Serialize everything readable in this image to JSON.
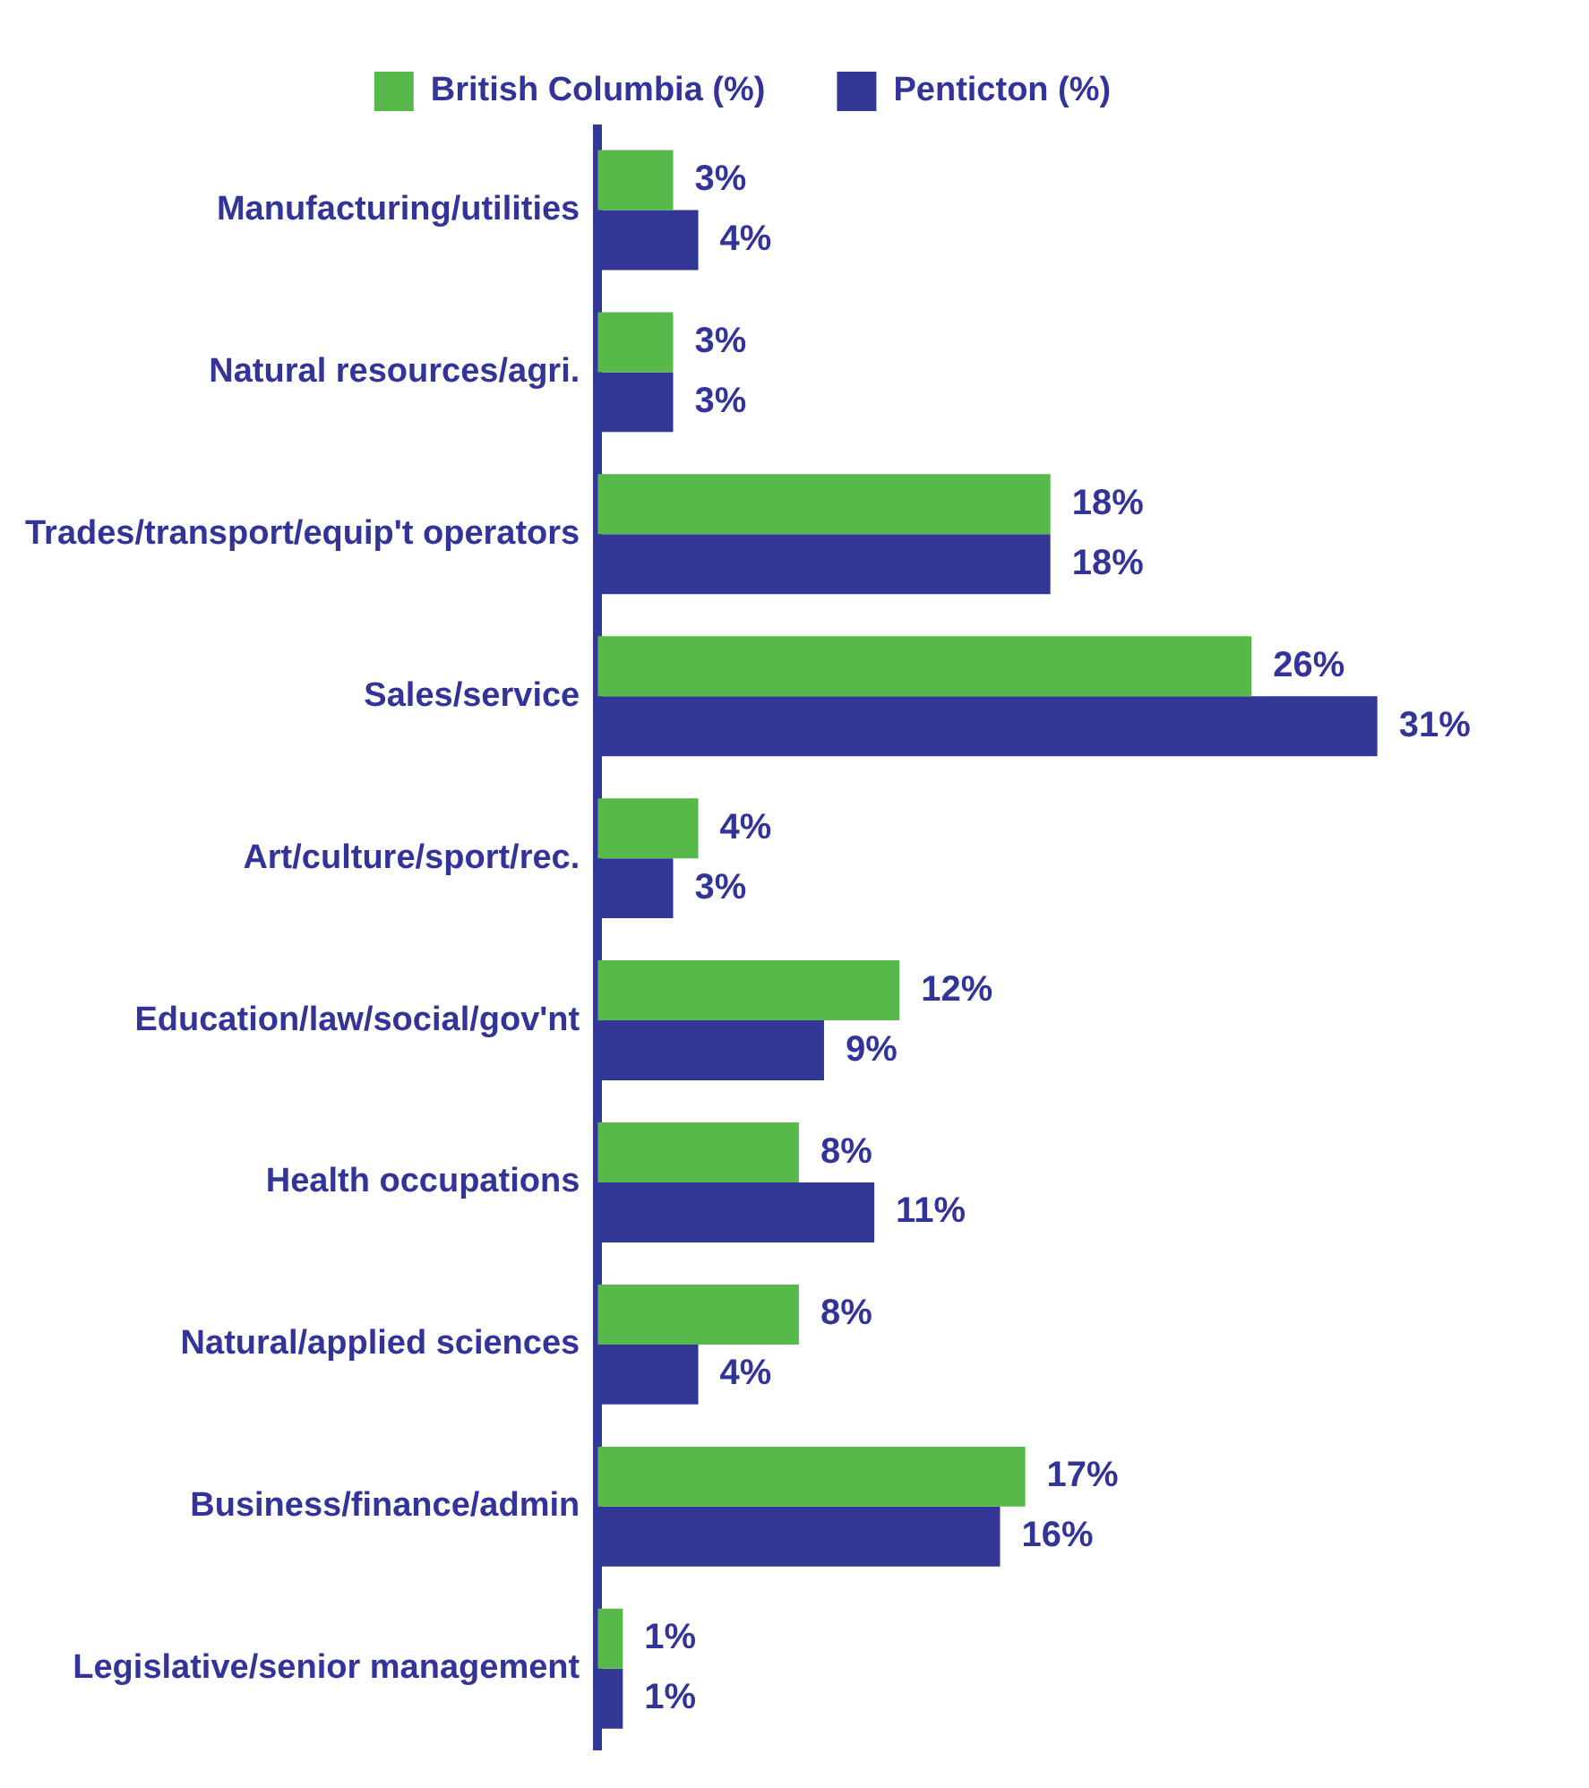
{
  "chart_data": {
    "type": "bar",
    "orientation": "horizontal",
    "legend": "top",
    "categories": [
      "Manufacturing/utilities",
      "Natural resources/agri.",
      "Trades/transport/equip't operators",
      "Sales/service",
      "Art/culture/sport/rec.",
      "Education/law/social/gov'nt",
      "Health occupations",
      "Natural/applied sciences",
      "Business/finance/admin",
      "Legislative/senior management"
    ],
    "series": [
      {
        "name": "British Columbia (%)",
        "color": "#56b949",
        "values": [
          3,
          3,
          18,
          26,
          4,
          12,
          8,
          8,
          17,
          1
        ],
        "value_labels": [
          "3%",
          "3%",
          "18%",
          "26%",
          "4%",
          "12%",
          "8%",
          "8%",
          "17%",
          "1%"
        ]
      },
      {
        "name": "Penticton (%)",
        "color": "#333896",
        "values": [
          4,
          3,
          18,
          31,
          3,
          9,
          11,
          4,
          16,
          1
        ],
        "value_labels": [
          "4%",
          "3%",
          "18%",
          "31%",
          "3%",
          "9%",
          "11%",
          "4%",
          "16%",
          "1%"
        ]
      }
    ]
  }
}
